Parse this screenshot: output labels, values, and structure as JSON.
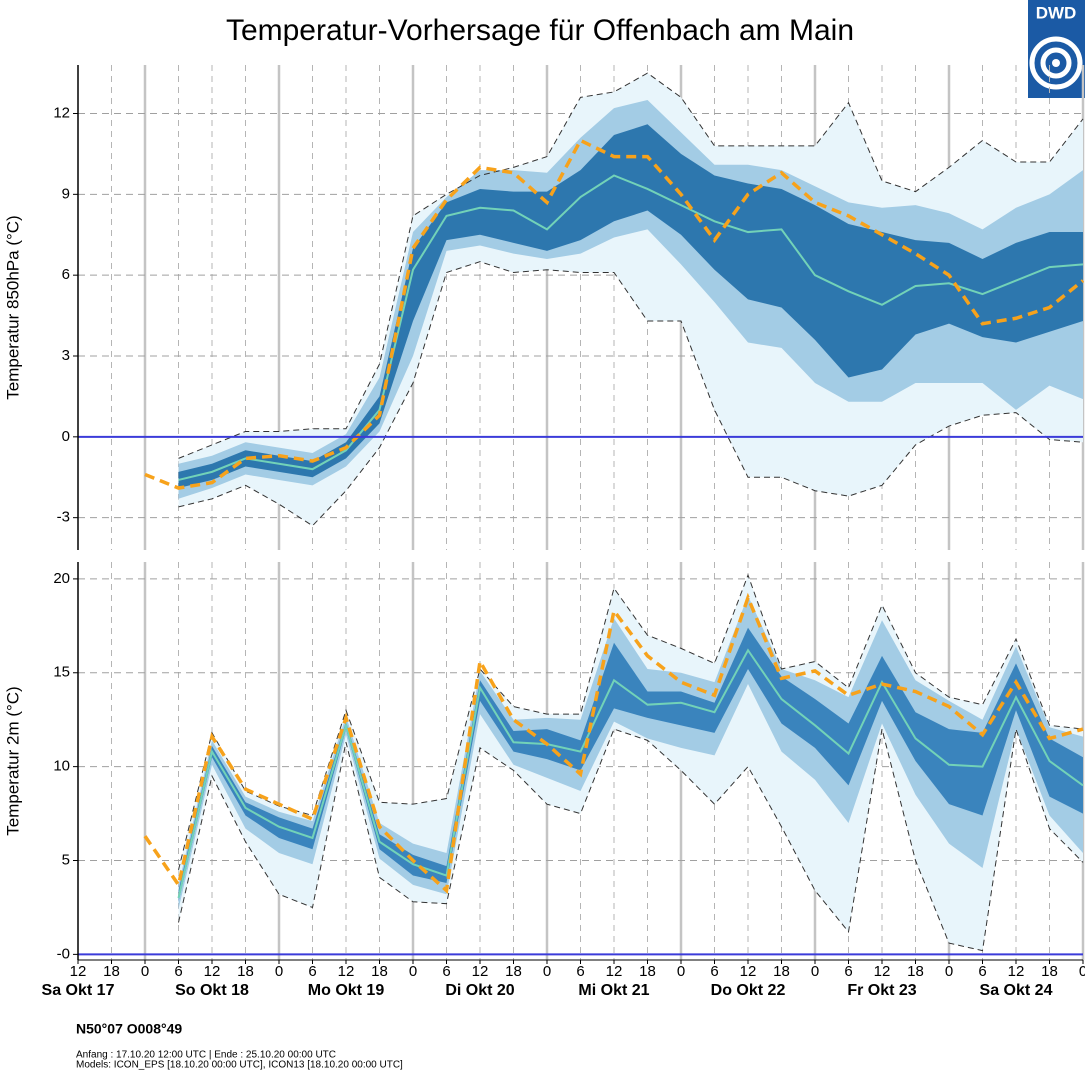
{
  "title": "Temperatur-Vorhersage für Offenbach am Main",
  "logo": "DWD",
  "location": "N50°07 O008°49",
  "footer_lines": [
    "Anfang : 17.10.20 12:00 UTC | Ende : 25.10.20 00:00 UTC",
    "Models: ICON_EPS [18.10.20 00:00 UTC], ICON13 [18.10.20 00:00 UTC]"
  ],
  "chart_data": [
    {
      "type": "line",
      "ylabel": "Temperatur 850hPa (°C)",
      "xlim": [
        0,
        180
      ],
      "ylim": [
        -4.2,
        13.8
      ],
      "yticks": [
        -3,
        0,
        3,
        6,
        9,
        12
      ],
      "grid": true,
      "hline": {
        "value": 0,
        "color": "#3b3bd9"
      },
      "x": [
        18,
        24,
        30,
        36,
        42,
        48,
        54,
        60,
        66,
        72,
        78,
        84,
        90,
        96,
        102,
        108,
        114,
        120,
        126,
        132,
        138,
        144,
        150,
        156,
        162,
        168,
        174,
        180
      ],
      "bands": [
        {
          "color": "#e8f5fb",
          "outline": "#333333",
          "lower": [
            -2.6,
            -2.3,
            -1.8,
            -2.5,
            -3.3,
            -2.0,
            -0.4,
            2.0,
            6.1,
            6.5,
            6.1,
            6.2,
            6.1,
            6.1,
            4.3,
            4.3,
            1.0,
            -1.5,
            -1.5,
            -2.0,
            -2.2,
            -1.8,
            -0.3,
            0.4,
            0.8,
            0.9,
            -0.1,
            -0.2
          ],
          "upper": [
            -0.8,
            -0.3,
            0.2,
            0.2,
            0.3,
            0.3,
            2.7,
            8.2,
            9.0,
            9.7,
            10.0,
            10.4,
            12.6,
            12.8,
            13.5,
            12.6,
            10.8,
            10.8,
            10.8,
            10.8,
            12.4,
            9.5,
            9.1,
            10.0,
            11.0,
            10.2,
            10.2,
            11.8
          ]
        },
        {
          "color": "#a3cce5",
          "lower": [
            -2.3,
            -1.9,
            -1.4,
            -1.6,
            -1.8,
            -1.1,
            0.2,
            3.0,
            6.9,
            7.1,
            6.8,
            6.6,
            6.8,
            7.4,
            7.7,
            6.4,
            5.0,
            3.5,
            3.3,
            2.0,
            1.3,
            1.3,
            2.0,
            2.0,
            2.0,
            1.0,
            1.9,
            1.4
          ],
          "upper": [
            -1.0,
            -0.7,
            -0.2,
            -0.4,
            -0.6,
            0.1,
            2.2,
            7.6,
            8.9,
            9.9,
            9.9,
            9.8,
            11.1,
            12.2,
            12.5,
            11.3,
            10.1,
            10.1,
            9.9,
            9.3,
            8.7,
            8.5,
            8.6,
            8.3,
            7.7,
            8.5,
            9.0,
            9.9
          ]
        },
        {
          "color": "#2d77ae",
          "lower": [
            -1.9,
            -1.6,
            -1.1,
            -1.3,
            -1.5,
            -0.8,
            0.5,
            4.3,
            7.3,
            7.5,
            7.2,
            6.9,
            7.3,
            8.0,
            8.4,
            7.5,
            6.2,
            5.1,
            4.8,
            3.6,
            2.2,
            2.5,
            3.8,
            4.2,
            3.7,
            3.5,
            3.9,
            4.3
          ],
          "upper": [
            -1.3,
            -1.0,
            -0.5,
            -0.7,
            -0.9,
            -0.2,
            1.5,
            7.0,
            8.7,
            9.2,
            9.1,
            9.1,
            9.9,
            11.2,
            11.6,
            10.5,
            9.7,
            9.4,
            9.2,
            8.6,
            7.9,
            7.6,
            7.3,
            7.2,
            6.6,
            7.2,
            7.6,
            7.6
          ]
        }
      ],
      "line": {
        "color": "#72d2b8",
        "values": [
          -1.6,
          -1.3,
          -0.8,
          -1.0,
          -1.2,
          -0.5,
          1.0,
          6.2,
          8.2,
          8.5,
          8.4,
          7.7,
          8.9,
          9.7,
          9.2,
          8.6,
          8.0,
          7.6,
          7.7,
          6.0,
          5.4,
          4.9,
          5.6,
          5.7,
          5.3,
          5.8,
          6.3,
          6.4
        ]
      },
      "dashed": {
        "color": "#f7a21b",
        "x": [
          12,
          18,
          24,
          30,
          36,
          42,
          48,
          54,
          60,
          66,
          72,
          78,
          84,
          90,
          96,
          102,
          108,
          114,
          120,
          126,
          132,
          138,
          144,
          150,
          156,
          162,
          168,
          174,
          180
        ],
        "values": [
          -1.4,
          -1.9,
          -1.7,
          -0.8,
          -0.7,
          -0.9,
          -0.4,
          0.8,
          7.0,
          8.8,
          10.0,
          9.8,
          8.7,
          11.0,
          10.4,
          10.4,
          9.0,
          7.3,
          9.0,
          9.8,
          8.7,
          8.2,
          7.5,
          6.8,
          6.0,
          4.2,
          4.4,
          4.8,
          5.8
        ]
      }
    },
    {
      "type": "line",
      "ylabel": "Temperatur 2m (°C)",
      "xlim": [
        0,
        180
      ],
      "ylim": [
        -0.3,
        20.9
      ],
      "yticks": [
        {
          "value": 0,
          "label": "-0"
        },
        5,
        10,
        15,
        20
      ],
      "grid": true,
      "hline": {
        "value": 0,
        "color": "#3b3bd9"
      },
      "xticks": [
        {
          "value": 0,
          "label": "12"
        },
        {
          "value": 6,
          "label": "18"
        },
        {
          "value": 12,
          "label": "0"
        },
        {
          "value": 18,
          "label": "6"
        },
        {
          "value": 24,
          "label": "12"
        },
        {
          "value": 30,
          "label": "18"
        },
        {
          "value": 36,
          "label": "0"
        },
        {
          "value": 42,
          "label": "6"
        },
        {
          "value": 48,
          "label": "12"
        },
        {
          "value": 54,
          "label": "18"
        },
        {
          "value": 60,
          "label": "0"
        },
        {
          "value": 66,
          "label": "6"
        },
        {
          "value": 72,
          "label": "12"
        },
        {
          "value": 78,
          "label": "18"
        },
        {
          "value": 84,
          "label": "0"
        },
        {
          "value": 90,
          "label": "6"
        },
        {
          "value": 96,
          "label": "12"
        },
        {
          "value": 102,
          "label": "18"
        },
        {
          "value": 108,
          "label": "0"
        },
        {
          "value": 114,
          "label": "6"
        },
        {
          "value": 120,
          "label": "12"
        },
        {
          "value": 126,
          "label": "18"
        },
        {
          "value": 132,
          "label": "0"
        },
        {
          "value": 138,
          "label": "6"
        },
        {
          "value": 144,
          "label": "12"
        },
        {
          "value": 150,
          "label": "18"
        },
        {
          "value": 156,
          "label": "0"
        },
        {
          "value": 162,
          "label": "6"
        },
        {
          "value": 168,
          "label": "12"
        },
        {
          "value": 174,
          "label": "18"
        },
        {
          "value": 180,
          "label": "0"
        }
      ],
      "xgrid_major": [
        12,
        36,
        60,
        84,
        108,
        132,
        156,
        180
      ],
      "day_labels": [
        {
          "value": 0,
          "label": "Sa Okt 17"
        },
        {
          "value": 24,
          "label": "So Okt 18"
        },
        {
          "value": 48,
          "label": "Mo Okt 19"
        },
        {
          "value": 72,
          "label": "Di Okt 20"
        },
        {
          "value": 96,
          "label": "Mi Okt 21"
        },
        {
          "value": 120,
          "label": "Do Okt 22"
        },
        {
          "value": 144,
          "label": "Fr Okt 23"
        },
        {
          "value": 168,
          "label": "Sa Okt 24"
        }
      ],
      "x": [
        18,
        24,
        30,
        36,
        42,
        48,
        54,
        60,
        66,
        72,
        78,
        84,
        90,
        96,
        102,
        108,
        114,
        120,
        126,
        132,
        138,
        144,
        150,
        156,
        162,
        168,
        174,
        180
      ],
      "bands": [
        {
          "color": "#e8f5fb",
          "outline": "#333333",
          "lower": [
            1.7,
            9.5,
            6.0,
            3.2,
            2.5,
            11.3,
            4.1,
            2.8,
            2.7,
            11.0,
            9.8,
            8.0,
            7.5,
            12.0,
            11.4,
            9.8,
            8.0,
            10.0,
            6.8,
            3.4,
            1.2,
            12.0,
            5.0,
            0.6,
            0.2,
            12.0,
            6.7,
            4.9
          ],
          "upper": [
            4.5,
            11.8,
            8.7,
            7.9,
            7.4,
            13.0,
            8.1,
            8.0,
            8.3,
            15.2,
            13.2,
            12.8,
            12.8,
            19.5,
            17.0,
            16.3,
            15.5,
            20.2,
            15.2,
            15.6,
            14.2,
            18.6,
            15.0,
            13.7,
            13.3,
            16.8,
            12.2,
            12.0
          ]
        },
        {
          "color": "#a3cce5",
          "lower": [
            2.4,
            10.1,
            6.7,
            5.4,
            4.8,
            11.7,
            5.1,
            3.7,
            3.2,
            12.8,
            10.1,
            9.4,
            8.7,
            12.4,
            11.5,
            11.0,
            10.6,
            14.4,
            10.8,
            9.3,
            7.0,
            12.3,
            8.5,
            5.9,
            4.6,
            12.0,
            7.4,
            5.4
          ],
          "upper": [
            3.7,
            11.4,
            8.4,
            7.6,
            7.1,
            12.7,
            7.0,
            5.9,
            5.4,
            15.1,
            12.5,
            12.6,
            12.5,
            17.9,
            15.2,
            15.0,
            14.5,
            19.1,
            15.2,
            14.6,
            13.7,
            17.8,
            14.6,
            13.5,
            12.5,
            16.4,
            12.1,
            11.6
          ]
        },
        {
          "color": "#3a84bd",
          "lower": [
            2.8,
            10.5,
            7.4,
            6.2,
            5.6,
            12.0,
            5.6,
            4.2,
            3.8,
            13.5,
            10.8,
            10.4,
            9.8,
            13.1,
            12.6,
            12.2,
            11.8,
            15.2,
            12.3,
            11.0,
            9.0,
            13.5,
            10.3,
            8.0,
            7.4,
            13.0,
            8.4,
            7.5
          ],
          "upper": [
            3.4,
            11.1,
            8.1,
            7.3,
            6.7,
            12.4,
            6.4,
            5.3,
            4.7,
            14.6,
            11.9,
            12.0,
            11.4,
            16.6,
            14.0,
            14.0,
            13.4,
            17.4,
            14.8,
            13.6,
            12.3,
            15.9,
            12.9,
            12.0,
            11.8,
            15.5,
            11.5,
            10.5
          ]
        }
      ],
      "line": {
        "color": "#72d2b8",
        "values": [
          3.0,
          10.8,
          7.8,
          6.8,
          6.2,
          12.2,
          6.0,
          4.8,
          4.2,
          14.2,
          11.3,
          11.2,
          10.8,
          14.6,
          13.3,
          13.4,
          12.9,
          16.2,
          13.6,
          12.2,
          10.7,
          14.5,
          11.5,
          10.1,
          10.0,
          13.7,
          10.3,
          9.0
        ]
      },
      "dashed": {
        "color": "#f7a21b",
        "x": [
          12,
          18,
          24,
          30,
          36,
          42,
          48,
          54,
          60,
          66,
          72,
          78,
          84,
          90,
          96,
          102,
          108,
          114,
          120,
          126,
          132,
          138,
          144,
          150,
          156,
          162,
          168,
          174,
          180
        ],
        "values": [
          6.3,
          3.7,
          11.6,
          8.8,
          8.0,
          7.2,
          12.6,
          6.8,
          5.0,
          3.4,
          15.6,
          12.5,
          11.2,
          9.6,
          18.3,
          15.9,
          14.5,
          13.8,
          19.0,
          14.7,
          15.1,
          13.8,
          14.4,
          14.0,
          13.2,
          11.7,
          14.5,
          11.5,
          12.0
        ]
      }
    }
  ]
}
